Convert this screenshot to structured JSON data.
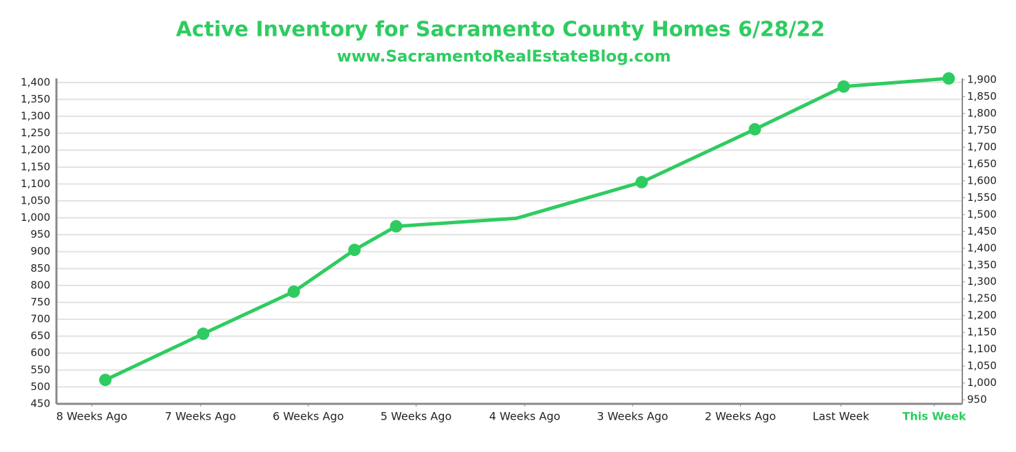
{
  "chart_data": {
    "type": "line",
    "title": "Active Inventory for Sacramento County Homes 6/28/22",
    "subtitle": "www.SacramentoRealEstateBlog.com",
    "x": [
      5.4,
      16.2,
      26.2,
      32.9,
      37.5,
      50.8,
      64.6,
      77.1,
      86.9,
      98.5
    ],
    "xlim": [
      0,
      100
    ],
    "xticks": [
      {
        "value": 3.9,
        "label": "8 Weeks Ago"
      },
      {
        "value": 15.9,
        "label": "7 Weeks Ago"
      },
      {
        "value": 27.8,
        "label": "6 Weeks Ago"
      },
      {
        "value": 39.7,
        "label": "5 Weeks Ago"
      },
      {
        "value": 51.7,
        "label": "4 Weeks Ago"
      },
      {
        "value": 63.6,
        "label": "3 Weeks Ago"
      },
      {
        "value": 75.5,
        "label": "2 Weeks Ago"
      },
      {
        "value": 86.6,
        "label": "Last Week"
      },
      {
        "value": 96.9,
        "label": "This Week",
        "color": "#2ecc60"
      }
    ],
    "series": [
      {
        "color": "#2ecc60",
        "axis": "y2",
        "values": [
          1009,
          1146,
          1271,
          1395,
          1465,
          1489,
          1596,
          1753,
          1880,
          1904
        ],
        "markers": [
          true,
          true,
          true,
          true,
          true,
          false,
          true,
          true,
          true,
          true
        ]
      }
    ],
    "ylim": [
      450,
      1412
    ],
    "yticks": [
      {
        "value": 450,
        "label": "450"
      },
      {
        "value": 500,
        "label": "500"
      },
      {
        "value": 550,
        "label": "550"
      },
      {
        "value": 600,
        "label": "600"
      },
      {
        "value": 650,
        "label": "650"
      },
      {
        "value": 700,
        "label": "700"
      },
      {
        "value": 750,
        "label": "750"
      },
      {
        "value": 800,
        "label": "800"
      },
      {
        "value": 850,
        "label": "850"
      },
      {
        "value": 900,
        "label": "900"
      },
      {
        "value": 950,
        "label": "950"
      },
      {
        "value": 1000,
        "label": "1,000"
      },
      {
        "value": 1050,
        "label": "1,050"
      },
      {
        "value": 1100,
        "label": "1,100"
      },
      {
        "value": 1150,
        "label": "1,150"
      },
      {
        "value": 1200,
        "label": "1,200"
      },
      {
        "value": 1250,
        "label": "1,250"
      },
      {
        "value": 1300,
        "label": "1,300"
      },
      {
        "value": 1350,
        "label": "1,350"
      },
      {
        "value": 1400,
        "label": "1,400"
      }
    ],
    "y2lim": [
      938,
      1904
    ],
    "y2ticks": [
      {
        "value": 950,
        "label": "950"
      },
      {
        "value": 1000,
        "label": "1,000"
      },
      {
        "value": 1050,
        "label": "1,050"
      },
      {
        "value": 1100,
        "label": "1,100"
      },
      {
        "value": 1150,
        "label": "1,150"
      },
      {
        "value": 1200,
        "label": "1,200"
      },
      {
        "value": 1250,
        "label": "1,250"
      },
      {
        "value": 1300,
        "label": "1,300"
      },
      {
        "value": 1350,
        "label": "1,350"
      },
      {
        "value": 1400,
        "label": "1,400"
      },
      {
        "value": 1450,
        "label": "1,450"
      },
      {
        "value": 1500,
        "label": "1,500"
      },
      {
        "value": 1550,
        "label": "1,550"
      },
      {
        "value": 1600,
        "label": "1,600"
      },
      {
        "value": 1650,
        "label": "1,650"
      },
      {
        "value": 1700,
        "label": "1,700"
      },
      {
        "value": 1750,
        "label": "1,750"
      },
      {
        "value": 1800,
        "label": "1,800"
      },
      {
        "value": 1850,
        "label": "1,850"
      },
      {
        "value": 1900,
        "label": "1,900"
      }
    ],
    "grid": true,
    "title_color": "#2ecc60"
  }
}
